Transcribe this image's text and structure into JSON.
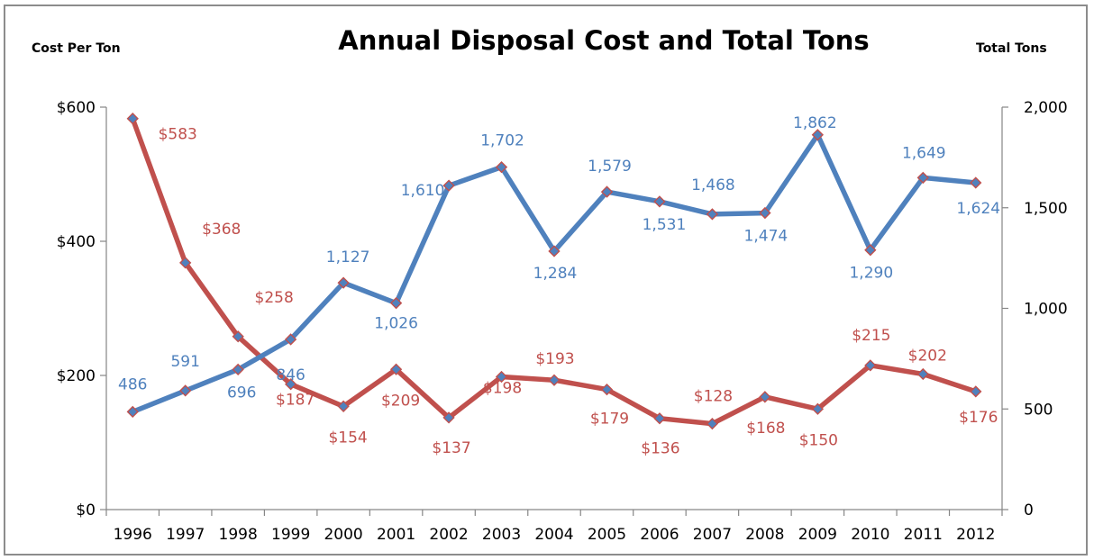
{
  "chart_data": {
    "type": "line",
    "title": "Annual Disposal Cost and Total Tons",
    "ylabel_left": "Cost Per Ton",
    "ylabel_right": "Total Tons",
    "categories": [
      "1996",
      "1997",
      "1998",
      "1999",
      "2000",
      "2001",
      "2002",
      "2003",
      "2004",
      "2005",
      "2006",
      "2007",
      "2008",
      "2009",
      "2010",
      "2011",
      "2012"
    ],
    "y_left": {
      "lim": [
        0,
        600
      ],
      "ticks": [
        0,
        200,
        400,
        600
      ],
      "tick_labels": [
        "$0",
        "$200",
        "$400",
        "$600"
      ]
    },
    "y_right": {
      "lim": [
        0,
        2000
      ],
      "ticks": [
        0,
        500,
        1000,
        1500,
        2000
      ],
      "tick_labels": [
        "0",
        "500",
        "1,000",
        "1,500",
        "2,000"
      ]
    },
    "grid": false,
    "series": [
      {
        "axis": "left",
        "color": "#c0504d",
        "values": [
          583,
          368,
          258,
          187,
          154,
          209,
          137,
          198,
          193,
          179,
          136,
          128,
          168,
          150,
          215,
          202,
          176
        ],
        "labels": [
          "$583",
          "$368",
          "$258",
          "$187",
          "$154",
          "$209",
          "$137",
          "$198",
          "$193",
          "$179",
          "$136",
          "$128",
          "$168",
          "$150",
          "$215",
          "$202",
          "$176"
        ]
      },
      {
        "axis": "right",
        "color": "#4f81bd",
        "values": [
          486,
          591,
          696,
          846,
          1127,
          1026,
          1610,
          1702,
          1284,
          1579,
          1531,
          1468,
          1474,
          1862,
          1290,
          1649,
          1624
        ],
        "labels": [
          "486",
          "591",
          "696",
          "846",
          "1,127",
          "1,026",
          "1,610",
          "1,702",
          "1,284",
          "1,579",
          "1,531",
          "1,468",
          "1,474",
          "1,862",
          "1,290",
          "1,649",
          "1,624"
        ]
      }
    ]
  }
}
